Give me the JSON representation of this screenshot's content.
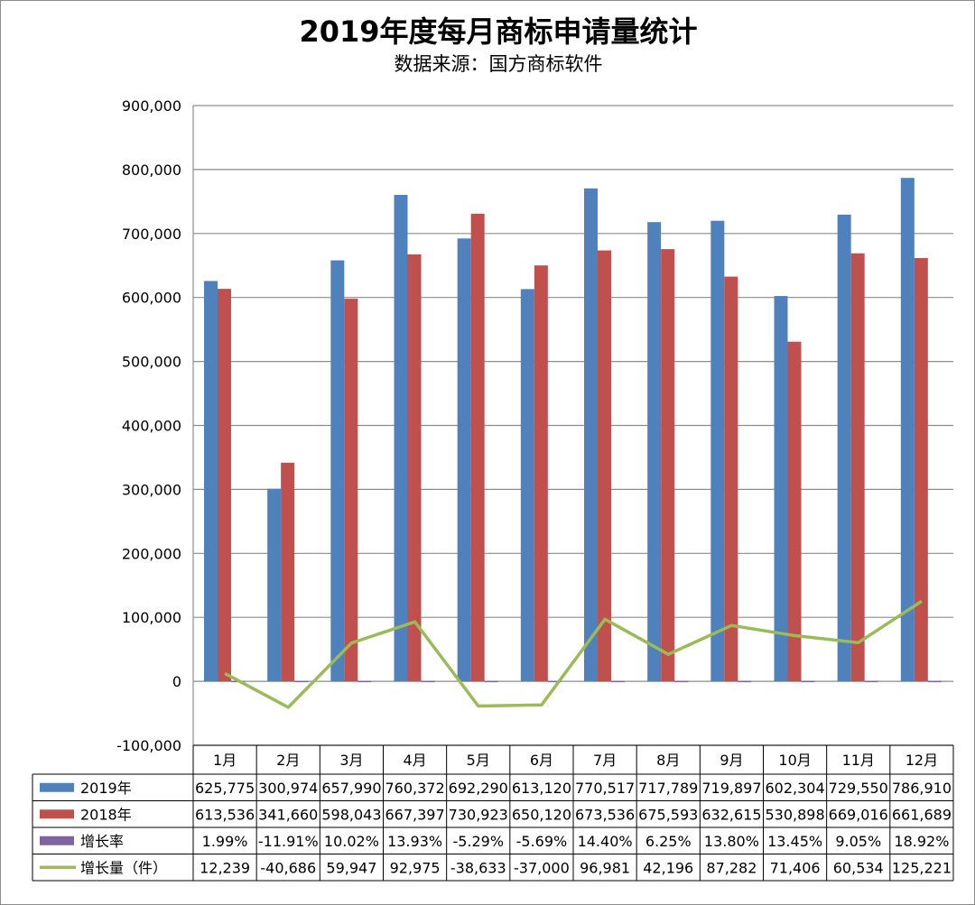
{
  "chart_data": {
    "type": "bar",
    "title": "2019年度每月商标申请量统计",
    "subtitle": "数据来源：国方商标软件",
    "categories": [
      "1月",
      "2月",
      "3月",
      "4月",
      "5月",
      "6月",
      "7月",
      "8月",
      "9月",
      "10月",
      "11月",
      "12月"
    ],
    "ylim": [
      -100000,
      900000
    ],
    "yticks": [
      -100000,
      0,
      100000,
      200000,
      300000,
      400000,
      500000,
      600000,
      700000,
      800000,
      900000
    ],
    "ytick_labels": [
      "-100,000",
      "0",
      "100,000",
      "200,000",
      "300,000",
      "400,000",
      "500,000",
      "600,000",
      "700,000",
      "800,000",
      "900,000"
    ],
    "grid": true,
    "legend_placement": "data table below chart",
    "series": [
      {
        "name": "2019年",
        "type": "bar",
        "color": "#4f81bd",
        "values": [
          625775,
          300974,
          657990,
          760372,
          692290,
          613120,
          770517,
          717789,
          719897,
          602304,
          729550,
          786910
        ],
        "labels": [
          "625,775",
          "300,974",
          "657,990",
          "760,372",
          "692,290",
          "613,120",
          "770,517",
          "717,789",
          "719,897",
          "602,304",
          "729,550",
          "786,910"
        ]
      },
      {
        "name": "2018年",
        "type": "bar",
        "color": "#c0504d",
        "values": [
          613536,
          341660,
          598043,
          667397,
          730923,
          650120,
          673536,
          675593,
          632615,
          530898,
          669016,
          661689
        ],
        "labels": [
          "613,536",
          "341,660",
          "598,043",
          "667,397",
          "730,923",
          "650,120",
          "673,536",
          "675,593",
          "632,615",
          "530,898",
          "669,016",
          "661,689"
        ]
      },
      {
        "name": "增长率",
        "type": "bar",
        "color": "#8064a2",
        "values": [
          1.99,
          -11.91,
          10.02,
          13.93,
          -5.29,
          -5.69,
          14.4,
          6.25,
          13.8,
          13.45,
          9.05,
          18.92
        ],
        "labels": [
          "1.99%",
          "-11.91%",
          "10.02%",
          "13.93%",
          "-5.29%",
          "-5.69%",
          "14.40%",
          "6.25%",
          "13.80%",
          "13.45%",
          "9.05%",
          "18.92%"
        ]
      },
      {
        "name": "增长量（件）",
        "type": "line",
        "color": "#9bbb59",
        "values": [
          12239,
          -40686,
          59947,
          92975,
          -38633,
          -37000,
          96981,
          42196,
          87282,
          71406,
          60534,
          125221
        ],
        "labels": [
          "12,239",
          "-40,686",
          "59,947",
          "92,975",
          "-38,633",
          "-37,000",
          "96,981",
          "42,196",
          "87,282",
          "71,406",
          "60,534",
          "125,221"
        ]
      }
    ]
  }
}
